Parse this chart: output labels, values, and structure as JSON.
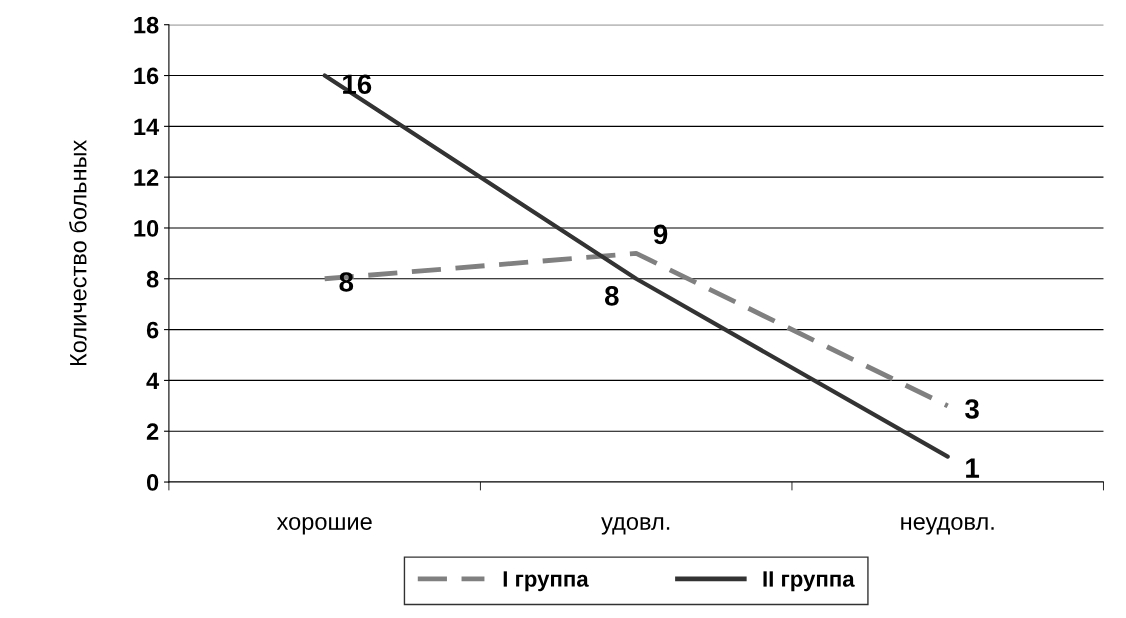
{
  "chart_data": {
    "type": "line",
    "ylabel": "Количество больных",
    "categories": [
      "хорошие",
      "удовл.",
      "неудовл."
    ],
    "series": [
      {
        "name": "I группа",
        "color": "#808080",
        "values": [
          8,
          9,
          3
        ],
        "line_style": "dashed"
      },
      {
        "name": "II группа",
        "color": "#333333",
        "values": [
          16,
          8,
          1
        ],
        "line_style": "solid"
      }
    ],
    "ylim": [
      0,
      18
    ],
    "yticks": [
      0,
      2,
      4,
      6,
      8,
      10,
      12,
      14,
      16,
      18
    ],
    "grid": "y",
    "legend": "bottom",
    "data_labels": true,
    "marker": "none"
  }
}
